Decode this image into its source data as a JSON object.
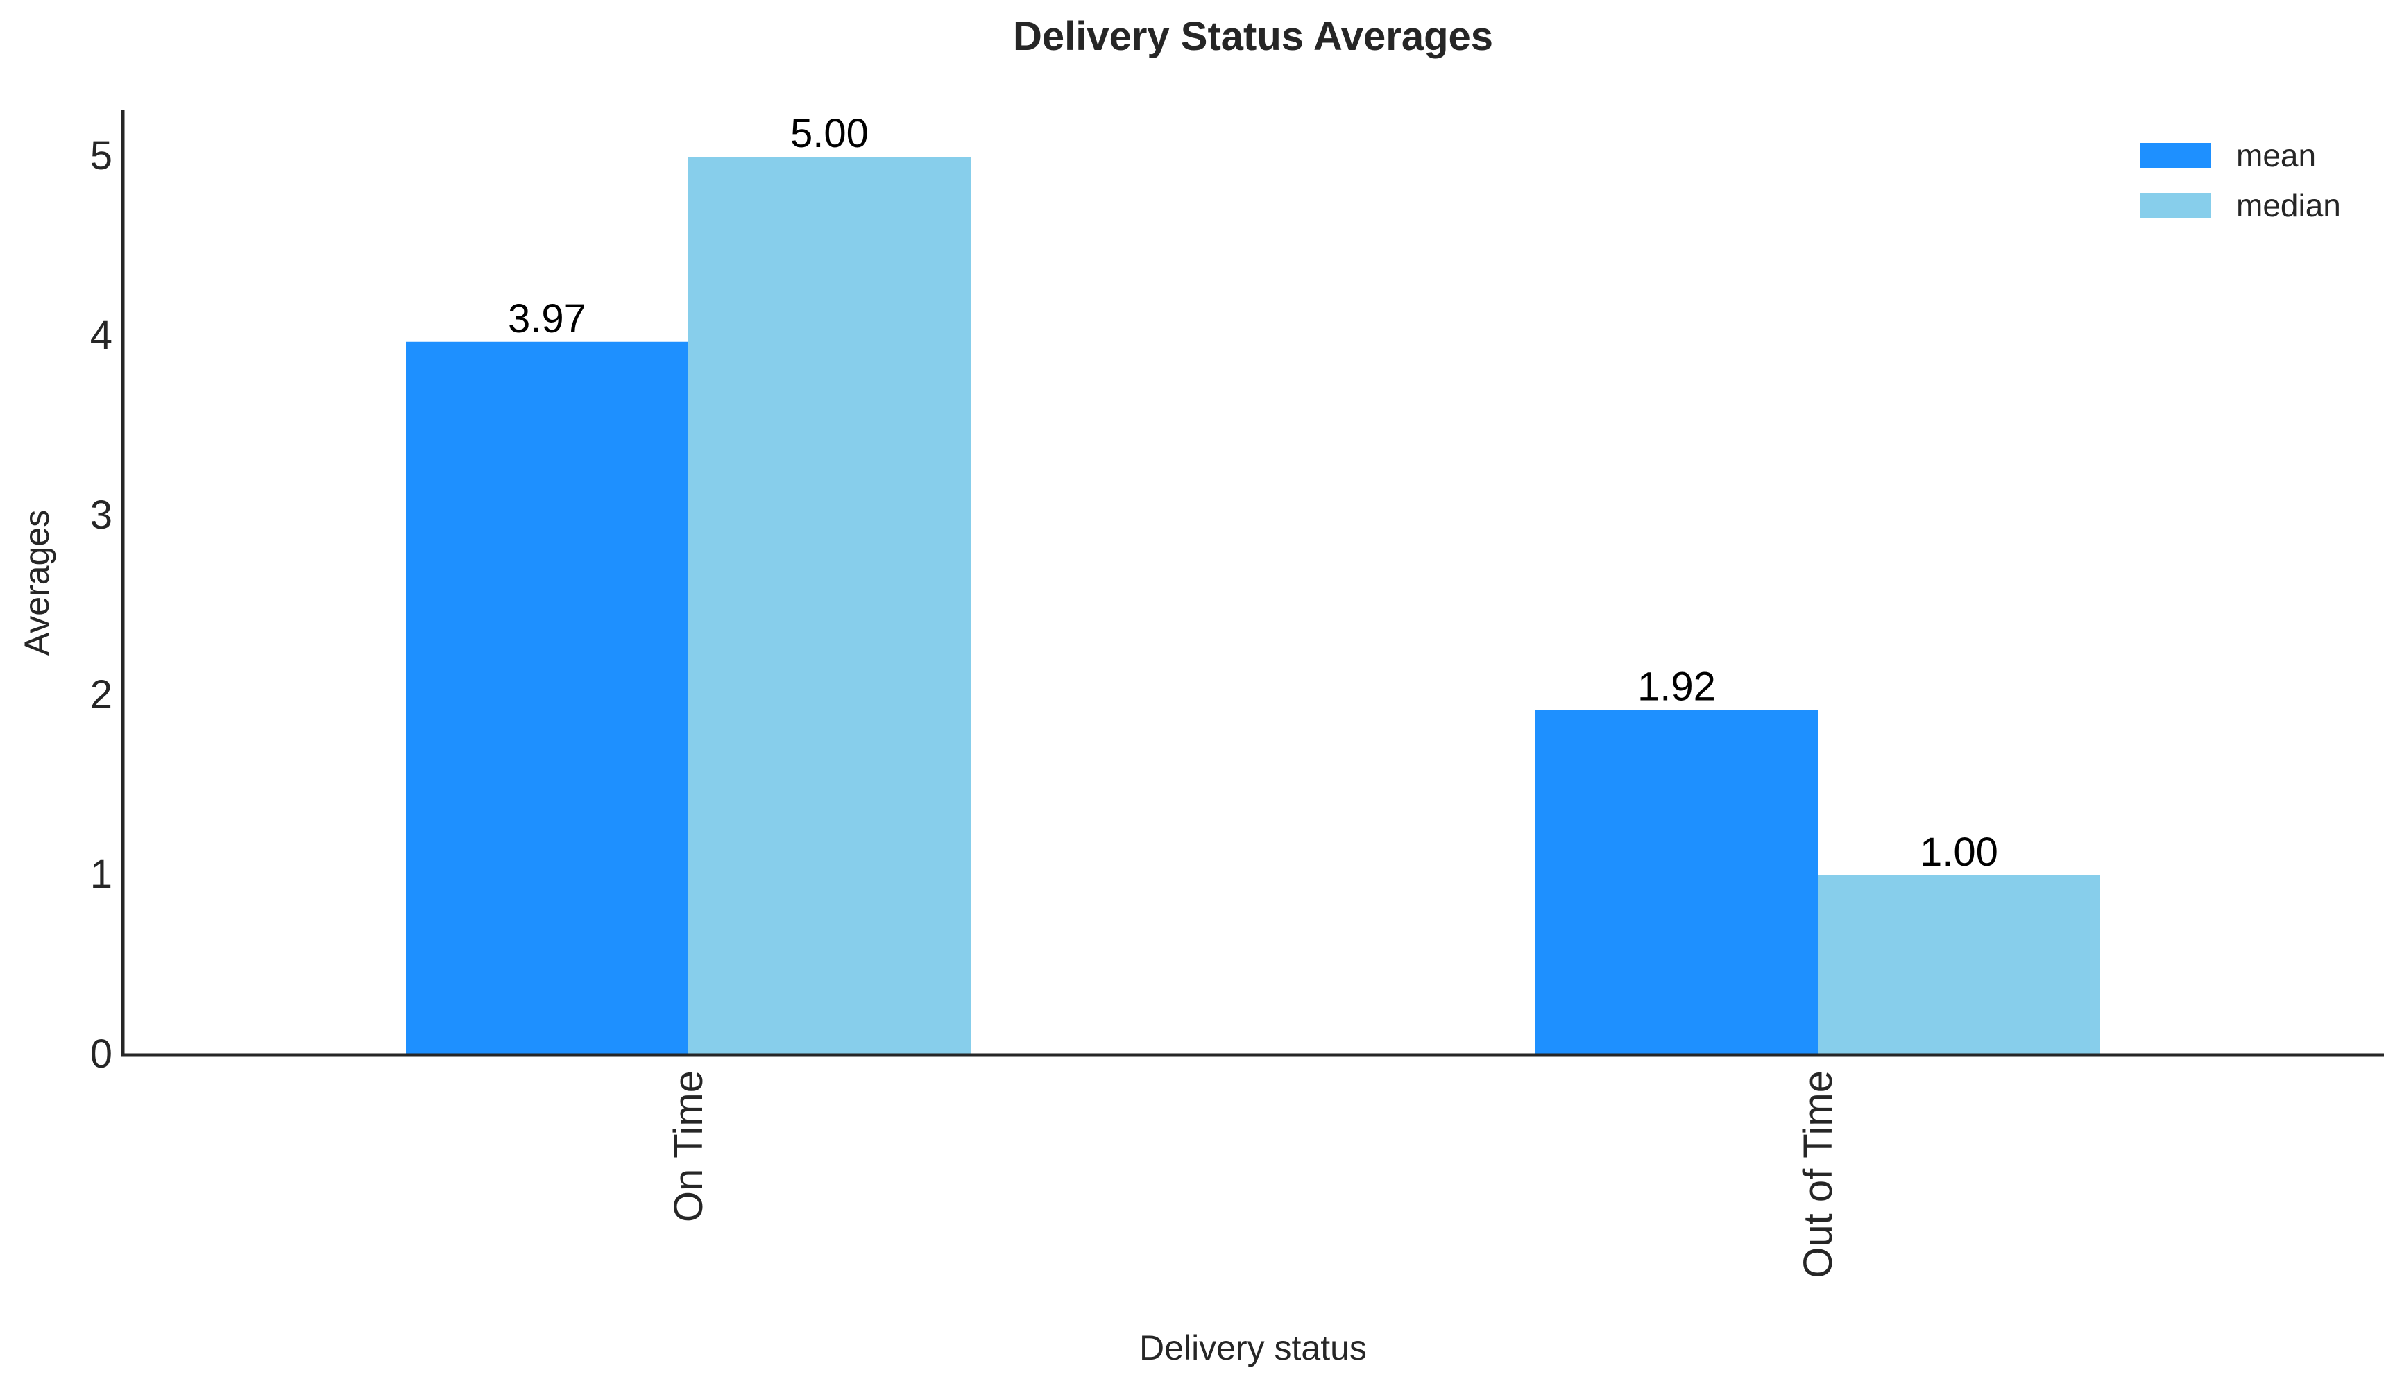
{
  "chart_data": {
    "type": "bar",
    "title": "Delivery Status Averages",
    "xlabel": "Delivery status",
    "ylabel": "Averages",
    "categories": [
      "On Time",
      "Out of Time"
    ],
    "series": [
      {
        "name": "mean",
        "values": [
          3.97,
          1.92
        ],
        "labels": [
          "3.97",
          "1.92"
        ],
        "color": "#1E90FF"
      },
      {
        "name": "median",
        "values": [
          5.0,
          1.0
        ],
        "labels": [
          "5.00",
          "1.00"
        ],
        "color": "#87CEEB"
      }
    ],
    "ylim": [
      0,
      5.25
    ],
    "yticks": [
      "0",
      "1",
      "2",
      "3",
      "4",
      "5"
    ],
    "grid": false,
    "legend_position": "top-right"
  }
}
